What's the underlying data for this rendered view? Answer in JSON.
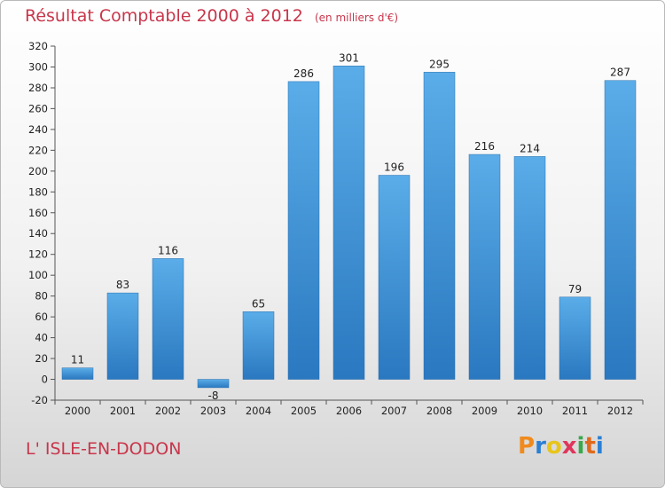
{
  "chart_data": {
    "type": "bar",
    "title": "Résultat Comptable 2000 à 2012",
    "subtitle": "(en milliers d'€)",
    "categories": [
      "2000",
      "2001",
      "2002",
      "2003",
      "2004",
      "2005",
      "2006",
      "2007",
      "2008",
      "2009",
      "2010",
      "2011",
      "2012"
    ],
    "values": [
      11,
      83,
      116,
      -8,
      65,
      286,
      301,
      196,
      295,
      216,
      214,
      79,
      287
    ],
    "ylim": [
      -20,
      320
    ],
    "yticks": [
      -20,
      0,
      20,
      40,
      60,
      80,
      100,
      120,
      140,
      160,
      180,
      200,
      220,
      240,
      260,
      280,
      300,
      320
    ],
    "xlabel": "",
    "ylabel": "",
    "grid": false,
    "bar_color": "#4a9ee0",
    "bar_color_dark": "#2a78c0"
  },
  "footer": {
    "commune": "L' ISLE-EN-DODON",
    "logo_letters": [
      "P",
      "r",
      "o",
      "x",
      "i",
      "t",
      "i"
    ],
    "logo_colors": [
      "#f08a1c",
      "#2b7fd4",
      "#e8c51a",
      "#e0365b",
      "#3aa84c",
      "#e06a1c",
      "#2b7fd4"
    ]
  },
  "colors": {
    "title": "#c8364b",
    "axis": "#555555"
  }
}
